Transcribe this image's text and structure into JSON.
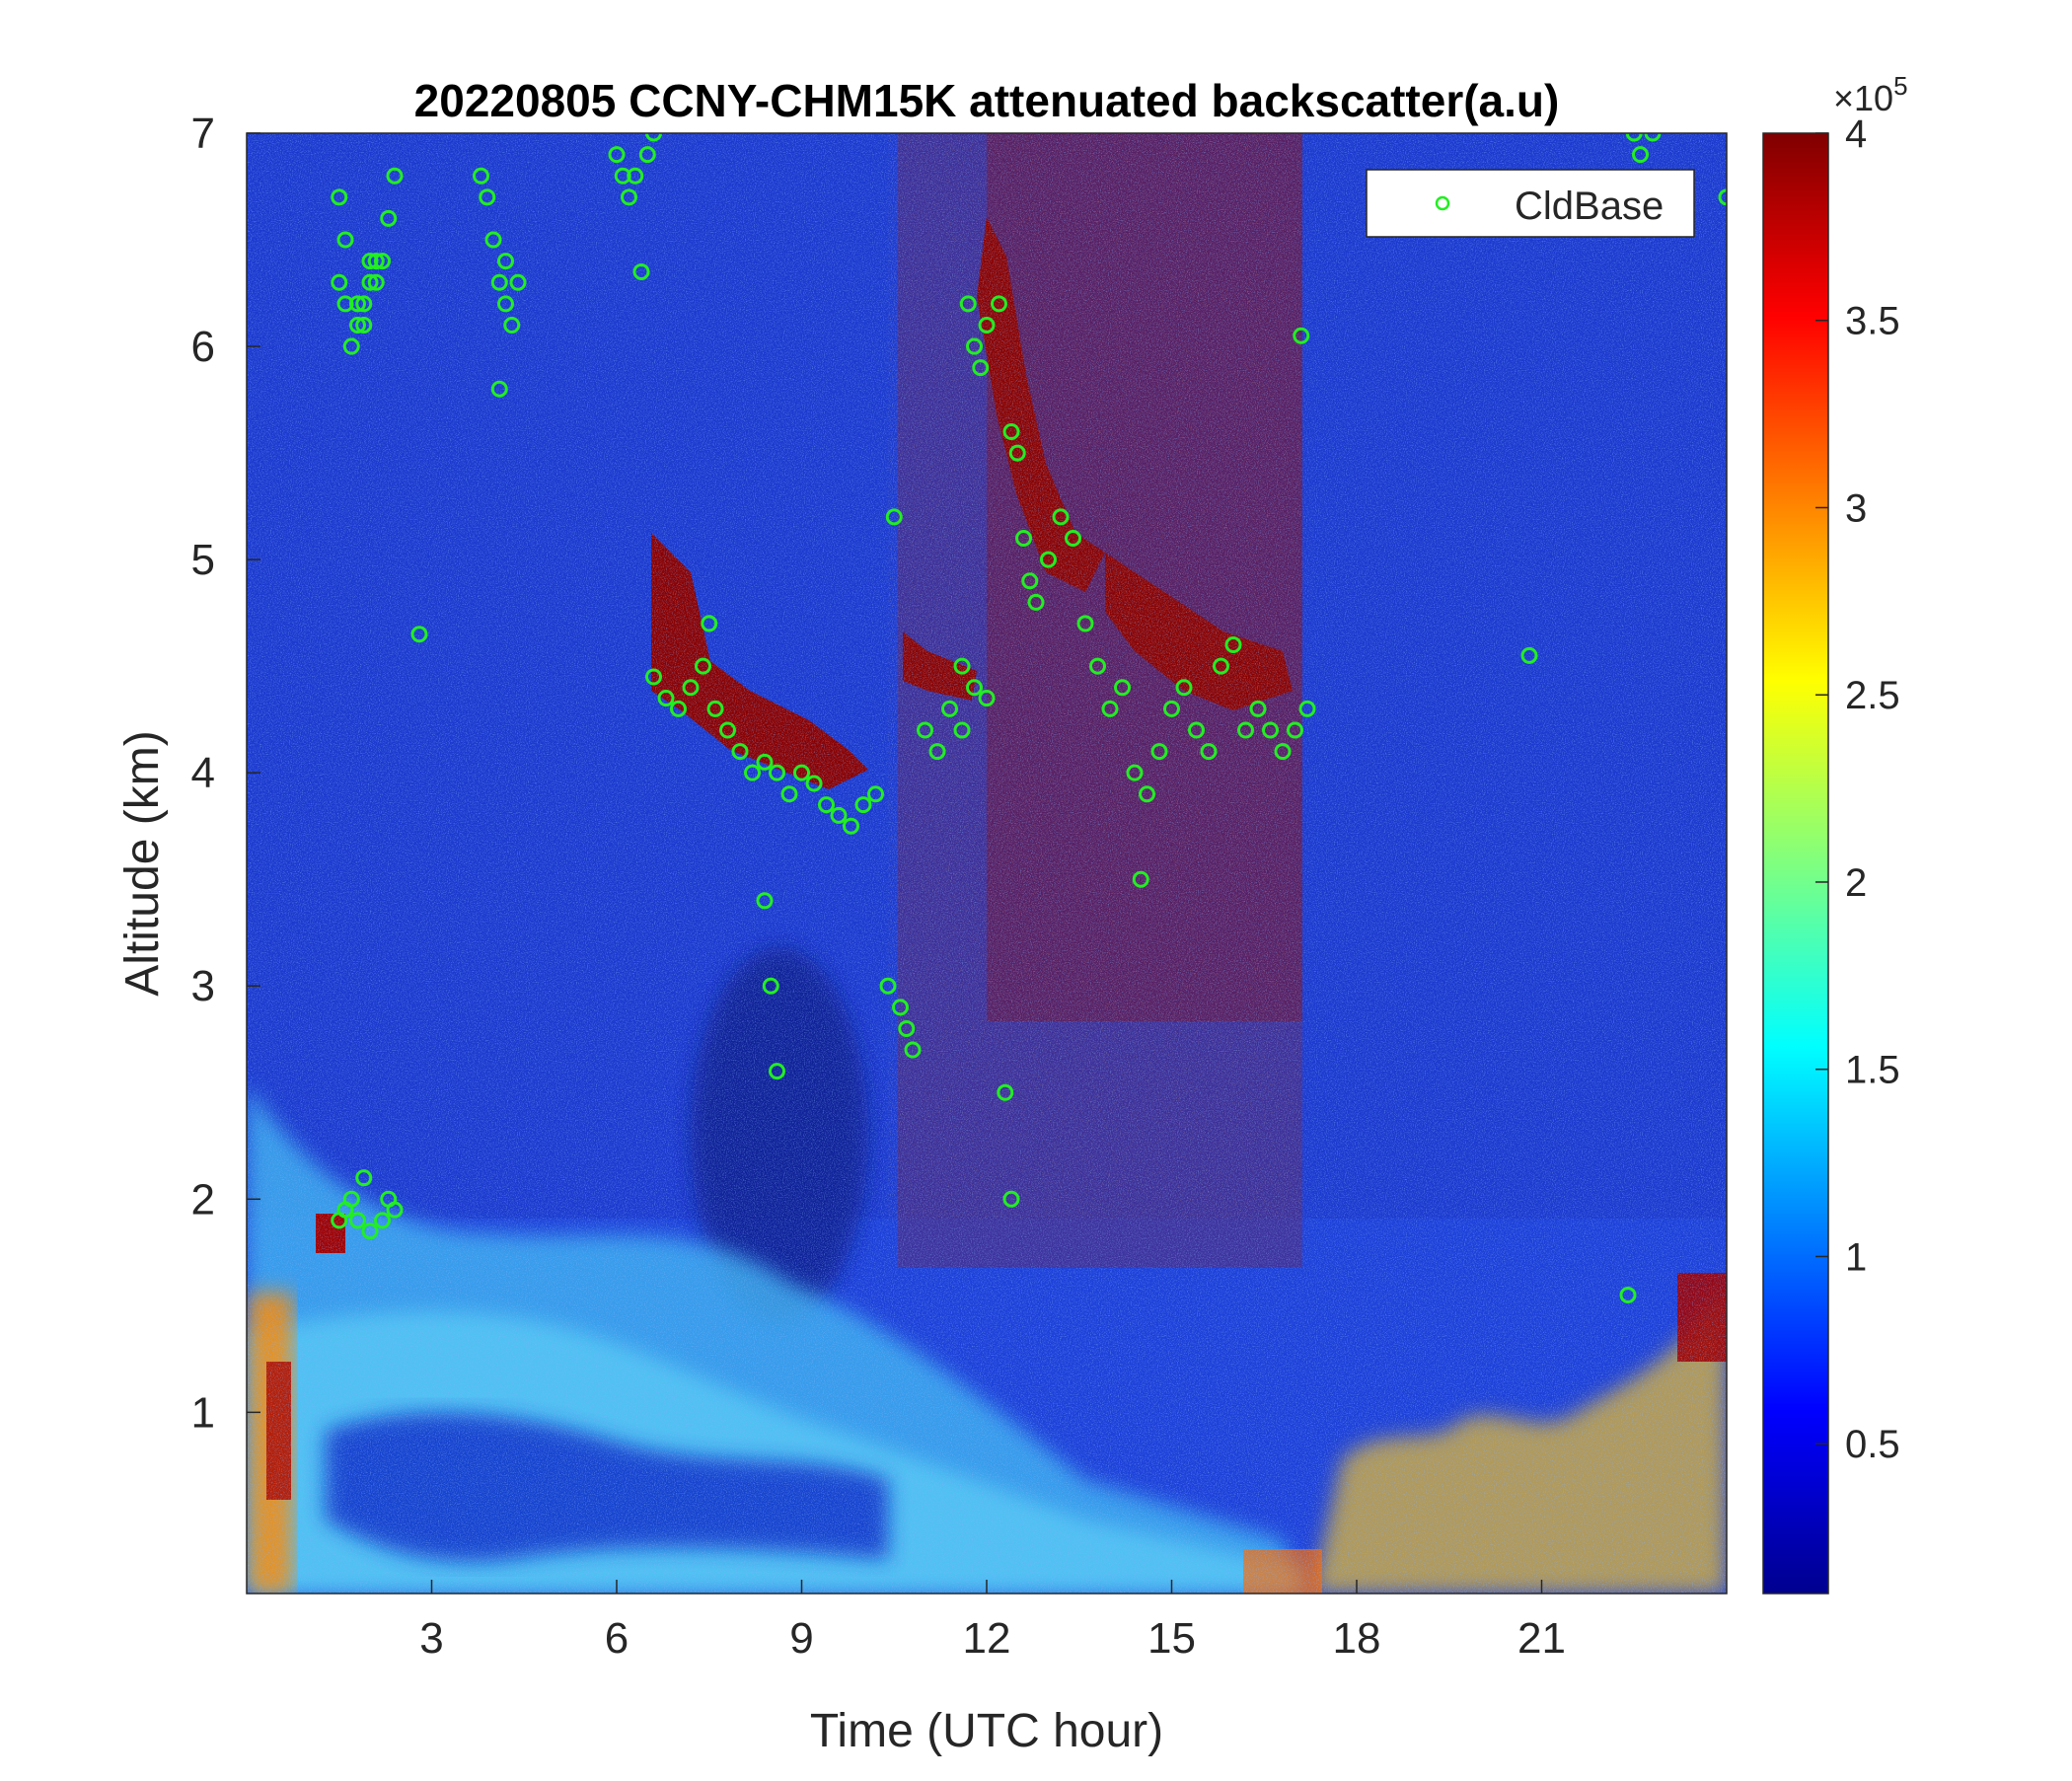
{
  "chart_data": {
    "type": "heatmap",
    "title": "20220805 CCNY-CHM15K attenuated backscatter(a.u)",
    "xlabel": "Time (UTC hour)",
    "ylabel": "Altitude (km)",
    "xlim": [
      0,
      24
    ],
    "ylim": [
      0.15,
      7
    ],
    "x_ticks": [
      "3",
      "6",
      "9",
      "12",
      "15",
      "18",
      "21"
    ],
    "y_ticks": [
      "1",
      "2",
      "3",
      "4",
      "5",
      "6",
      "7"
    ],
    "colorbar": {
      "colormap": "jet",
      "clim": [
        0.1,
        4
      ],
      "ticks": [
        "0.5",
        "1",
        "1.5",
        "2",
        "2.5",
        "3",
        "3.5",
        "4"
      ],
      "multiplier": "×10",
      "exponent": "5"
    },
    "legend": {
      "location": "top-right",
      "entries": [
        "CldBase"
      ]
    },
    "series": [
      {
        "name": "CldBase",
        "marker": "circle",
        "color": "#22ee22",
        "x": [
          1.5,
          1.6,
          1.8,
          1.9,
          2.0,
          2.1,
          2.2,
          2.3,
          2.4,
          1.5,
          1.6,
          1.7,
          1.8,
          1.9,
          2.0,
          2.2,
          2.3,
          2.4,
          1.5,
          1.6,
          1.7,
          1.8,
          1.9,
          2.0,
          2.1,
          3.8,
          3.9,
          4.0,
          4.1,
          4.2,
          4.3,
          4.4,
          4.1,
          4.2,
          6.0,
          6.1,
          6.2,
          6.3,
          6.5,
          6.6,
          6.4,
          2.8,
          6.6,
          6.8,
          7.0,
          7.2,
          7.4,
          7.6,
          7.8,
          8.0,
          8.2,
          8.4,
          8.6,
          8.8,
          9.0,
          9.2,
          9.4,
          9.6,
          9.8,
          10.0,
          10.2,
          7.5,
          8.4,
          8.5,
          8.6,
          10.4,
          10.6,
          10.8,
          10.5,
          10.7,
          11.0,
          11.2,
          11.4,
          11.6,
          11.8,
          12.0,
          11.6,
          11.7,
          11.8,
          11.9,
          12.0,
          12.2,
          12.4,
          12.5,
          12.6,
          12.7,
          12.8,
          13.0,
          13.2,
          13.4,
          13.6,
          13.8,
          14.0,
          14.2,
          14.4,
          14.6,
          14.8,
          15.0,
          15.2,
          15.4,
          15.6,
          15.8,
          16.0,
          16.2,
          16.4,
          16.6,
          16.8,
          17.0,
          17.2,
          12.3,
          12.4,
          14.5,
          17.1,
          20.8,
          22.5,
          22.6,
          22.8,
          22.4,
          24.0
        ],
        "y": [
          6.7,
          6.5,
          6.2,
          6.1,
          6.4,
          6.3,
          6.4,
          6.6,
          6.8,
          1.9,
          1.95,
          2.0,
          1.9,
          2.1,
          1.85,
          1.9,
          2.0,
          1.95,
          6.3,
          6.2,
          6.0,
          6.1,
          6.2,
          6.3,
          6.4,
          6.8,
          6.7,
          6.5,
          6.3,
          6.2,
          6.1,
          6.3,
          5.8,
          6.4,
          6.9,
          6.8,
          6.7,
          6.8,
          6.9,
          7.0,
          6.35,
          4.65,
          4.45,
          4.35,
          4.3,
          4.4,
          4.5,
          4.3,
          4.2,
          4.1,
          4.0,
          4.05,
          4.0,
          3.9,
          4.0,
          3.95,
          3.85,
          3.8,
          3.75,
          3.85,
          3.9,
          4.7,
          3.4,
          3.0,
          2.6,
          3.0,
          2.9,
          2.7,
          5.2,
          2.8,
          4.2,
          4.1,
          4.3,
          4.2,
          4.4,
          4.35,
          4.5,
          6.2,
          6.0,
          5.9,
          6.1,
          6.2,
          5.6,
          5.5,
          5.1,
          4.9,
          4.8,
          5.0,
          5.2,
          5.1,
          4.7,
          4.5,
          4.3,
          4.4,
          4.0,
          3.9,
          4.1,
          4.3,
          4.4,
          4.2,
          4.1,
          4.5,
          4.6,
          4.2,
          4.3,
          4.2,
          4.1,
          4.2,
          4.3,
          2.5,
          2.0,
          3.5,
          6.05,
          4.55,
          7.0,
          6.9,
          7.0,
          1.55,
          6.7
        ]
      }
    ]
  }
}
